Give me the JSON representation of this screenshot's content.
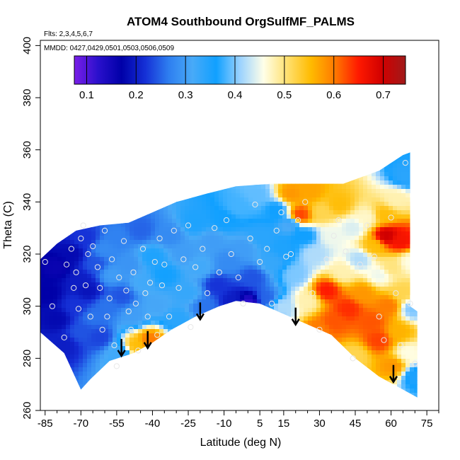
{
  "chart_data": {
    "type": "heatmap",
    "title": "ATOM4 Southbound OrgSulfMF_PALMS",
    "notes": {
      "flights": "Flts: 2,3,4,5,6,7",
      "dates": "MMDD: 0427,0429,0501,0503,0506,0509"
    },
    "xlabel": "Latitude (deg N)",
    "ylabel": "Theta (C)",
    "xlim": [
      -87,
      80
    ],
    "ylim": [
      260,
      402
    ],
    "x_ticks": [
      -85,
      -70,
      -55,
      -40,
      -25,
      -10,
      5,
      15,
      30,
      45,
      60,
      75
    ],
    "x_minor_ticks": [
      -80,
      -75,
      -65,
      -60,
      -50,
      -45,
      -35,
      -30,
      -20,
      -15,
      -5,
      0,
      10,
      20,
      25,
      35,
      40,
      50,
      55,
      65,
      70,
      80
    ],
    "y_ticks": [
      260,
      280,
      300,
      320,
      340,
      360,
      380,
      400
    ],
    "grid": false,
    "colorbar": {
      "position": "top",
      "min": 0.075,
      "max": 0.745,
      "ticks": [
        0.1,
        0.2,
        0.3,
        0.4,
        0.5,
        0.6,
        0.7
      ],
      "colors": [
        "#7a1ee8",
        "#2a10cc",
        "#0000a8",
        "#1530d6",
        "#2e7ff0",
        "#48aaf8",
        "#10a0ff",
        "#9ad2ff",
        "#ffffe8",
        "#ffe070",
        "#ffbb00",
        "#ff7a00",
        "#ff1a00",
        "#d10000",
        "#a01a1a"
      ]
    },
    "arrows": [
      {
        "lat": -53,
        "theta": 288
      },
      {
        "lat": -42,
        "theta": 291
      },
      {
        "lat": -20,
        "theta": 302
      },
      {
        "lat": 20,
        "theta": 300
      },
      {
        "lat": 61,
        "theta": 278
      }
    ],
    "upper_envelope": [
      [
        -87,
        318
      ],
      [
        -80,
        324
      ],
      [
        -72,
        329
      ],
      [
        -62,
        331
      ],
      [
        -50,
        332
      ],
      [
        -40,
        336
      ],
      [
        -30,
        340
      ],
      [
        -18,
        343
      ],
      [
        -5,
        346
      ],
      [
        10,
        347
      ],
      [
        25,
        347
      ],
      [
        40,
        347
      ],
      [
        55,
        352
      ],
      [
        65,
        358
      ],
      [
        68,
        359
      ],
      [
        68,
        300
      ],
      [
        71,
        298
      ],
      [
        71,
        265
      ]
    ],
    "lower_envelope": [
      [
        71,
        265
      ],
      [
        65,
        268
      ],
      [
        55,
        273
      ],
      [
        45,
        280
      ],
      [
        35,
        289
      ],
      [
        25,
        293
      ],
      [
        15,
        297
      ],
      [
        5,
        301
      ],
      [
        -5,
        302
      ],
      [
        -12,
        300
      ],
      [
        -22,
        296
      ],
      [
        -32,
        291
      ],
      [
        -40,
        286
      ],
      [
        -48,
        282
      ],
      [
        -58,
        279
      ],
      [
        -66,
        272
      ],
      [
        -70,
        268
      ],
      [
        -77,
        282
      ],
      [
        -87,
        290
      ],
      [
        -87,
        318
      ]
    ],
    "samples": [
      [
        -84,
        305,
        0.17
      ],
      [
        -80,
        315,
        0.16
      ],
      [
        -80,
        295,
        0.18
      ],
      [
        -77,
        285,
        0.2
      ],
      [
        -74,
        320,
        0.18
      ],
      [
        -72,
        300,
        0.22
      ],
      [
        -70,
        310,
        0.2
      ],
      [
        -70,
        290,
        0.24
      ],
      [
        -68,
        326,
        0.22
      ],
      [
        -67,
        306,
        0.19
      ],
      [
        -65,
        296,
        0.26
      ],
      [
        -64,
        316,
        0.24
      ],
      [
        -62,
        288,
        0.23
      ],
      [
        -60,
        322,
        0.28
      ],
      [
        -59,
        300,
        0.26
      ],
      [
        -57,
        312,
        0.3
      ],
      [
        -55,
        326,
        0.27
      ],
      [
        -54,
        282,
        0.32
      ],
      [
        -53,
        304,
        0.24
      ],
      [
        -50,
        316,
        0.29
      ],
      [
        -48,
        296,
        0.3
      ],
      [
        -47,
        285,
        0.55
      ],
      [
        -45,
        329,
        0.25
      ],
      [
        -44,
        309,
        0.32
      ],
      [
        -41,
        287,
        0.6
      ],
      [
        -40,
        319,
        0.35
      ],
      [
        -38,
        300,
        0.31
      ],
      [
        -35,
        312,
        0.36
      ],
      [
        -33,
        327,
        0.28
      ],
      [
        -30,
        295,
        0.34
      ],
      [
        -27,
        320,
        0.3
      ],
      [
        -25,
        305,
        0.33
      ],
      [
        -22,
        332,
        0.35
      ],
      [
        -20,
        315,
        0.32
      ],
      [
        -18,
        300,
        0.26
      ],
      [
        -15,
        325,
        0.3
      ],
      [
        -13,
        308,
        0.22
      ],
      [
        -10,
        333,
        0.36
      ],
      [
        -8,
        317,
        0.28
      ],
      [
        -6,
        302,
        0.2
      ],
      [
        -4,
        338,
        0.38
      ],
      [
        -2,
        322,
        0.3
      ],
      [
        0,
        301,
        0.12
      ],
      [
        2,
        311,
        0.24
      ],
      [
        4,
        343,
        0.39
      ],
      [
        6,
        327,
        0.34
      ],
      [
        8,
        303,
        0.25
      ],
      [
        10,
        317,
        0.33
      ],
      [
        12,
        337,
        0.36
      ],
      [
        14,
        300,
        0.42
      ],
      [
        15,
        322,
        0.35
      ],
      [
        17,
        331,
        0.31
      ],
      [
        18,
        343,
        0.58
      ],
      [
        20,
        312,
        0.4
      ],
      [
        22,
        335,
        0.63
      ],
      [
        24,
        327,
        0.36
      ],
      [
        25,
        302,
        0.48
      ],
      [
        26,
        344,
        0.57
      ],
      [
        28,
        320,
        0.42
      ],
      [
        30,
        291,
        0.6
      ],
      [
        31,
        336,
        0.52
      ],
      [
        33,
        306,
        0.65
      ],
      [
        35,
        327,
        0.45
      ],
      [
        36,
        294,
        0.62
      ],
      [
        38,
        339,
        0.55
      ],
      [
        40,
        313,
        0.48
      ],
      [
        42,
        299,
        0.64
      ],
      [
        44,
        330,
        0.44
      ],
      [
        45,
        281,
        0.52
      ],
      [
        47,
        318,
        0.42
      ],
      [
        48,
        305,
        0.58
      ],
      [
        50,
        334,
        0.47
      ],
      [
        52,
        294,
        0.62
      ],
      [
        53,
        323,
        0.55
      ],
      [
        55,
        312,
        0.45
      ],
      [
        55,
        287,
        0.63
      ],
      [
        57,
        335,
        0.55
      ],
      [
        58,
        327,
        0.7
      ],
      [
        59,
        300,
        0.6
      ],
      [
        60,
        315,
        0.5
      ],
      [
        61,
        277,
        0.58
      ],
      [
        62,
        341,
        0.48
      ],
      [
        63,
        290,
        0.56
      ],
      [
        64,
        325,
        0.66
      ],
      [
        65,
        305,
        0.52
      ],
      [
        66,
        350,
        0.34
      ],
      [
        67,
        282,
        0.46
      ],
      [
        68,
        317,
        0.46
      ],
      [
        69,
        299,
        0.4
      ],
      [
        70,
        273,
        0.35
      ]
    ],
    "points": [
      [
        -85,
        317
      ],
      [
        -77,
        288
      ],
      [
        -73,
        307
      ],
      [
        -71,
        299
      ],
      [
        -70,
        326
      ],
      [
        -69,
        331
      ],
      [
        -68,
        308
      ],
      [
        -66,
        296
      ],
      [
        -65,
        323
      ],
      [
        -63,
        315
      ],
      [
        -61,
        291
      ],
      [
        -60,
        329
      ],
      [
        -58,
        303
      ],
      [
        -57,
        318
      ],
      [
        -55,
        277
      ],
      [
        -54,
        311
      ],
      [
        -52,
        325
      ],
      [
        -50,
        298
      ],
      [
        -49,
        291
      ],
      [
        -48,
        313
      ],
      [
        -46,
        283
      ],
      [
        -44,
        322
      ],
      [
        -43,
        305
      ],
      [
        -41,
        309
      ],
      [
        -39,
        317
      ],
      [
        -37,
        326
      ],
      [
        -35,
        316
      ],
      [
        -33,
        296
      ],
      [
        -31,
        329
      ],
      [
        -29,
        307
      ],
      [
        -27,
        318
      ],
      [
        -25,
        331
      ],
      [
        -24,
        292
      ],
      [
        -22,
        315
      ],
      [
        -19,
        322
      ],
      [
        -17,
        305
      ],
      [
        -14,
        330
      ],
      [
        -12,
        313
      ],
      [
        -9,
        333
      ],
      [
        -7,
        320
      ],
      [
        -4,
        311
      ],
      [
        -2,
        301
      ],
      [
        1,
        326
      ],
      [
        3,
        339
      ],
      [
        5,
        317
      ],
      [
        8,
        322
      ],
      [
        10,
        301
      ],
      [
        12,
        329
      ],
      [
        14,
        336
      ],
      [
        16,
        319
      ],
      [
        18,
        320
      ],
      [
        21,
        333
      ],
      [
        24,
        340
      ],
      [
        27,
        305
      ],
      [
        30,
        291
      ],
      [
        33,
        318
      ],
      [
        36,
        327
      ],
      [
        38,
        333
      ],
      [
        41,
        321
      ],
      [
        44,
        280
      ],
      [
        47,
        316
      ],
      [
        50,
        331
      ],
      [
        53,
        319
      ],
      [
        55,
        296
      ],
      [
        57,
        287
      ],
      [
        60,
        334
      ],
      [
        62,
        305
      ],
      [
        64,
        285
      ],
      [
        66,
        355
      ],
      [
        68,
        301
      ],
      [
        70,
        278
      ],
      [
        -82,
        300
      ],
      [
        -76,
        316
      ],
      [
        -74,
        322
      ],
      [
        -72,
        313
      ],
      [
        -67,
        320
      ],
      [
        -62,
        307
      ],
      [
        -59,
        296
      ],
      [
        -56,
        285
      ],
      [
        -51,
        306
      ],
      [
        -47,
        301
      ],
      [
        -42,
        296
      ],
      [
        -38,
        289
      ],
      [
        -36,
        308
      ]
    ]
  }
}
